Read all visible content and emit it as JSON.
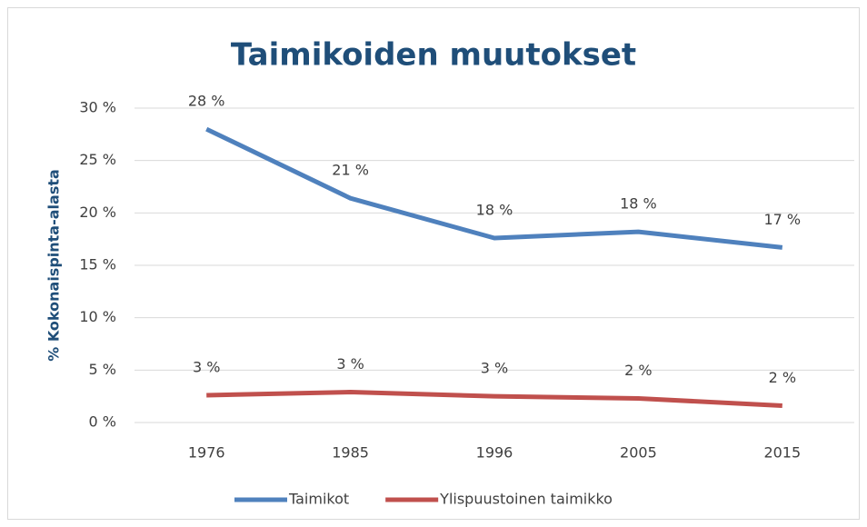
{
  "chart_data": {
    "type": "line",
    "title": "Taimikoiden muutokset",
    "ylabel": "% Kokonaispinta-alasta",
    "categories": [
      "1976",
      "1985",
      "1996",
      "2005",
      "2015"
    ],
    "series": [
      {
        "name": "Taimikot",
        "color": "#4f81bd",
        "values": [
          28.0,
          21.4,
          17.6,
          18.2,
          16.7
        ],
        "value_labels": [
          "28 %",
          "21 %",
          "18 %",
          "18 %",
          "17 %"
        ]
      },
      {
        "name": "Ylispuustoinen taimikko",
        "color": "#c0504d",
        "values": [
          2.6,
          2.9,
          2.5,
          2.3,
          1.6
        ],
        "value_labels": [
          "3 %",
          "3 %",
          "3 %",
          "2 %",
          "2 %"
        ]
      }
    ],
    "ylim": [
      0,
      30
    ],
    "yticks": [
      {
        "value": 0,
        "label": "0 %"
      },
      {
        "value": 5,
        "label": "5 %"
      },
      {
        "value": 10,
        "label": "10 %"
      },
      {
        "value": 15,
        "label": "15 %"
      },
      {
        "value": 20,
        "label": "20 %"
      },
      {
        "value": 25,
        "label": "25 %"
      },
      {
        "value": 30,
        "label": "30 %"
      }
    ],
    "grid": true,
    "legend": "bottom"
  }
}
